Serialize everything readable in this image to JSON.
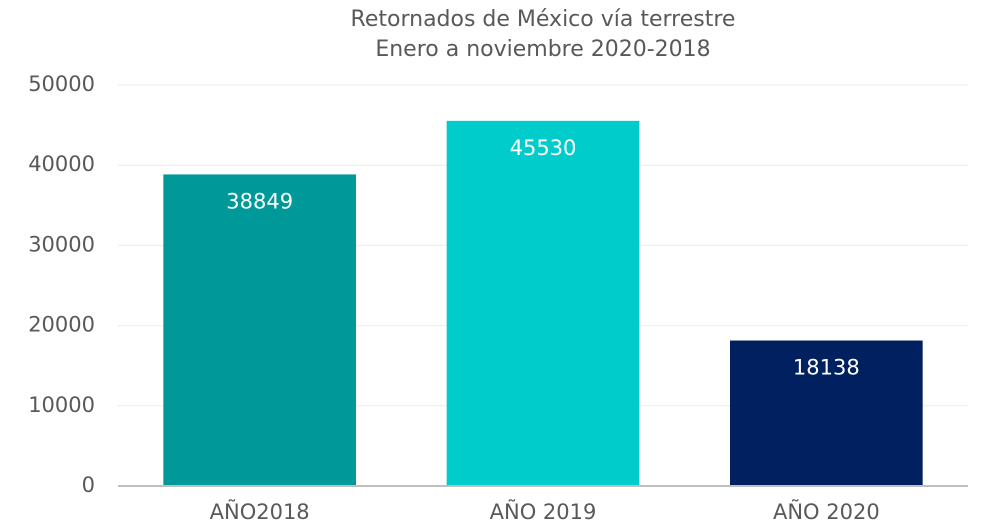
{
  "chart_data": {
    "type": "bar",
    "title": "Retornados de México vía terrestre",
    "subtitle": "Enero a noviembre 2020-2018",
    "categories": [
      "AÑO2018",
      "AÑO 2019",
      "AÑO 2020"
    ],
    "values": [
      38849,
      45530,
      18138
    ],
    "colors": [
      "#009999",
      "#00cccc",
      "#002060"
    ],
    "ylim": [
      0,
      50000
    ],
    "yticks": [
      0,
      10000,
      20000,
      30000,
      40000,
      50000
    ],
    "grid": true
  }
}
